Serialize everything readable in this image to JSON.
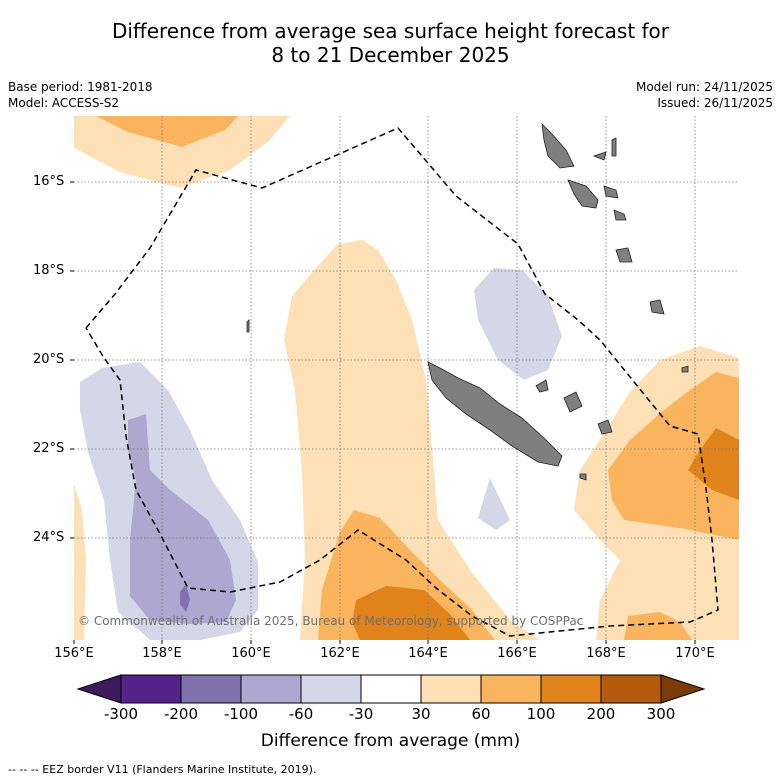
{
  "title": {
    "line1": "Difference from average sea surface height forecast for",
    "line2": "8 to 21 December 2025"
  },
  "meta": {
    "base_period": "Base period: 1981-2018",
    "model": "Model: ACCESS-S2",
    "model_run": "Model run: 24/11/2025",
    "issued": "Issued: 26/11/2025"
  },
  "axes": {
    "lat_labels": [
      "16°S",
      "18°S",
      "20°S",
      "22°S",
      "24°S"
    ],
    "lon_labels": [
      "156°E",
      "158°E",
      "160°E",
      "162°E",
      "164°E",
      "166°E",
      "168°E",
      "170°E"
    ]
  },
  "credit": "© Commonwealth of Australia 2025, Bureau of Meteorology, supported by COSPPac",
  "colorbar": {
    "title": "Difference from average (mm)",
    "ticks": [
      "-300",
      "-200",
      "-100",
      "-60",
      "-30",
      "30",
      "60",
      "100",
      "200",
      "300"
    ],
    "colors": [
      "#3d1a5b",
      "#54238a",
      "#7f72ad",
      "#aea7cf",
      "#d6d6e9",
      "#ffffff",
      "#fde0b5",
      "#fbb45e",
      "#e0831b",
      "#b35a0d",
      "#7a3b06"
    ]
  },
  "footnote": "-- -- -- EEZ border V11 (Flanders Marine Institute, 2019)."
}
